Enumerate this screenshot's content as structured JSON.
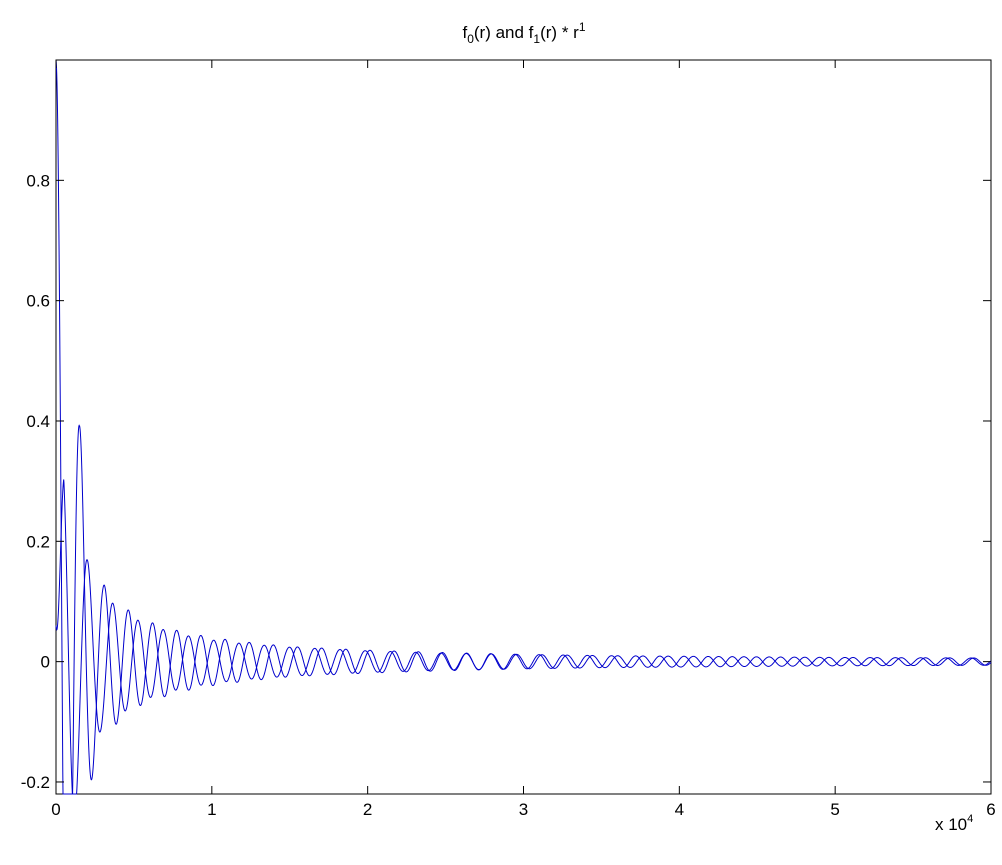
{
  "chart_data": {
    "type": "line",
    "title": "f0(r) and f1(r) * r1",
    "title_parts": {
      "f": "f",
      "sub0": "0",
      "mid": "(r) and f",
      "sub1": "1",
      "mid2": "(r) * r",
      "sup1": "1"
    },
    "xlabel": "",
    "ylabel": "",
    "x_scale_label": {
      "prefix": "x 10",
      "exponent": "4"
    },
    "xlim": [
      0,
      6
    ],
    "ylim": [
      -0.22,
      1.0
    ],
    "x_ticks": [
      0,
      1,
      2,
      3,
      4,
      5,
      6
    ],
    "x_tick_labels": [
      "0",
      "1",
      "2",
      "3",
      "4",
      "5",
      "6"
    ],
    "y_ticks": [
      -0.2,
      0,
      0.2,
      0.4,
      0.6,
      0.8
    ],
    "y_tick_labels": [
      "-0.2",
      "0",
      "0.2",
      "0.4",
      "0.6",
      "0.8"
    ],
    "grid": false,
    "legend": "none",
    "line_color": "#0000cc",
    "series": [
      {
        "function": "f0",
        "x": [
          0,
          0.05,
          0.1,
          0.15,
          0.2,
          0.25,
          0.3,
          0.4,
          0.5,
          0.6,
          0.8,
          1.0,
          1.2,
          1.5,
          2.0,
          2.5,
          3.0,
          3.5,
          4.0,
          4.5,
          5.0,
          5.5,
          6.0
        ],
        "envelope": [
          1.0,
          0.95,
          0.62,
          0.4,
          0.25,
          0.16,
          0.13,
          0.1,
          0.078,
          0.066,
          0.05,
          0.04,
          0.033,
          0.025,
          0.019,
          0.015,
          0.012,
          0.01,
          0.009,
          0.008,
          0.007,
          0.0065,
          0.006
        ],
        "period": 0.155,
        "phase": 0
      },
      {
        "function": "f1 * r",
        "x": [
          0,
          0.05,
          0.1,
          0.15,
          0.2,
          0.25,
          0.3,
          0.4,
          0.5,
          0.6,
          0.8,
          1.0,
          1.2,
          1.5,
          2.0,
          2.5,
          3.0,
          3.5,
          4.0,
          4.5,
          5.0,
          5.5,
          6.0
        ],
        "envelope": [
          0.0,
          0.32,
          0.28,
          0.22,
          0.17,
          0.13,
          0.11,
          0.09,
          0.072,
          0.06,
          0.045,
          0.036,
          0.03,
          0.024,
          0.018,
          0.014,
          0.012,
          0.01,
          0.009,
          0.008,
          0.007,
          0.0065,
          0.006
        ],
        "period": 0.162,
        "phase": 1.57,
        "start_value": 0.06
      }
    ]
  }
}
